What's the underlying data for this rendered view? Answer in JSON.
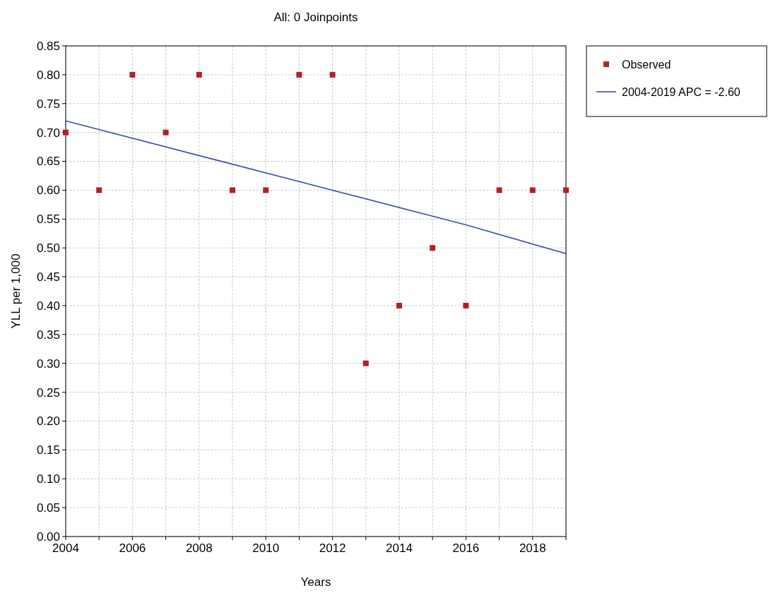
{
  "chart_data": {
    "type": "scatter",
    "title": "All: 0 Joinpoints",
    "xlabel": "Years",
    "ylabel": "YLL per 1,000",
    "xlim": [
      2004,
      2019
    ],
    "ylim": [
      0,
      0.85
    ],
    "xticks": [
      2004,
      {
        "value": 2005,
        "label": null
      },
      2006,
      {
        "value": 2007,
        "label": null
      },
      2008,
      {
        "value": 2009,
        "label": null
      },
      2010,
      {
        "value": 2011,
        "label": null
      },
      2012,
      {
        "value": 2013,
        "label": null
      },
      2014,
      {
        "value": 2015,
        "label": null
      },
      2016,
      {
        "value": 2017,
        "label": null
      },
      2018,
      {
        "value": 2019,
        "label": null
      }
    ],
    "yticks": [
      {
        "value": 0,
        "label": "0.00"
      },
      {
        "value": 0.05,
        "label": "0.05"
      },
      {
        "value": 0.1,
        "label": "0.10"
      },
      {
        "value": 0.15,
        "label": "0.15"
      },
      {
        "value": 0.2,
        "label": "0.20"
      },
      {
        "value": 0.25,
        "label": "0.25"
      },
      {
        "value": 0.3,
        "label": "0.30"
      },
      {
        "value": 0.35,
        "label": "0.35"
      },
      {
        "value": 0.4,
        "label": "0.40"
      },
      {
        "value": 0.45,
        "label": "0.45"
      },
      {
        "value": 0.5,
        "label": "0.50"
      },
      {
        "value": 0.55,
        "label": "0.55"
      },
      {
        "value": 0.6,
        "label": "0.60"
      },
      {
        "value": 0.65,
        "label": "0.65"
      },
      {
        "value": 0.7,
        "label": "0.70"
      },
      {
        "value": 0.75,
        "label": "0.75"
      },
      {
        "value": 0.8,
        "label": "0.80"
      },
      {
        "value": 0.85,
        "label": "0.85"
      }
    ],
    "grid": true,
    "legend": "top right",
    "series": [
      {
        "name": "Observed",
        "marker": "square",
        "color": "#b22222",
        "x": [
          2004,
          2005,
          2006,
          2007,
          2008,
          2009,
          2010,
          2011,
          2012,
          2013,
          2014,
          2015,
          2016,
          2017,
          2018,
          2019
        ],
        "values": [
          0.7,
          0.6,
          0.8,
          0.7,
          0.8,
          0.6,
          0.6,
          0.8,
          0.8,
          0.3,
          0.4,
          0.5,
          0.4,
          0.6,
          0.6,
          0.6
        ]
      },
      {
        "name": "2004-2019 APC = -2.60",
        "type": "line",
        "color": "#3a4faa",
        "line_style": "solid",
        "x": [
          2004,
          2008,
          2012,
          2016,
          2019
        ],
        "values": [
          0.72,
          0.66,
          0.6,
          0.54,
          0.49
        ]
      }
    ]
  }
}
